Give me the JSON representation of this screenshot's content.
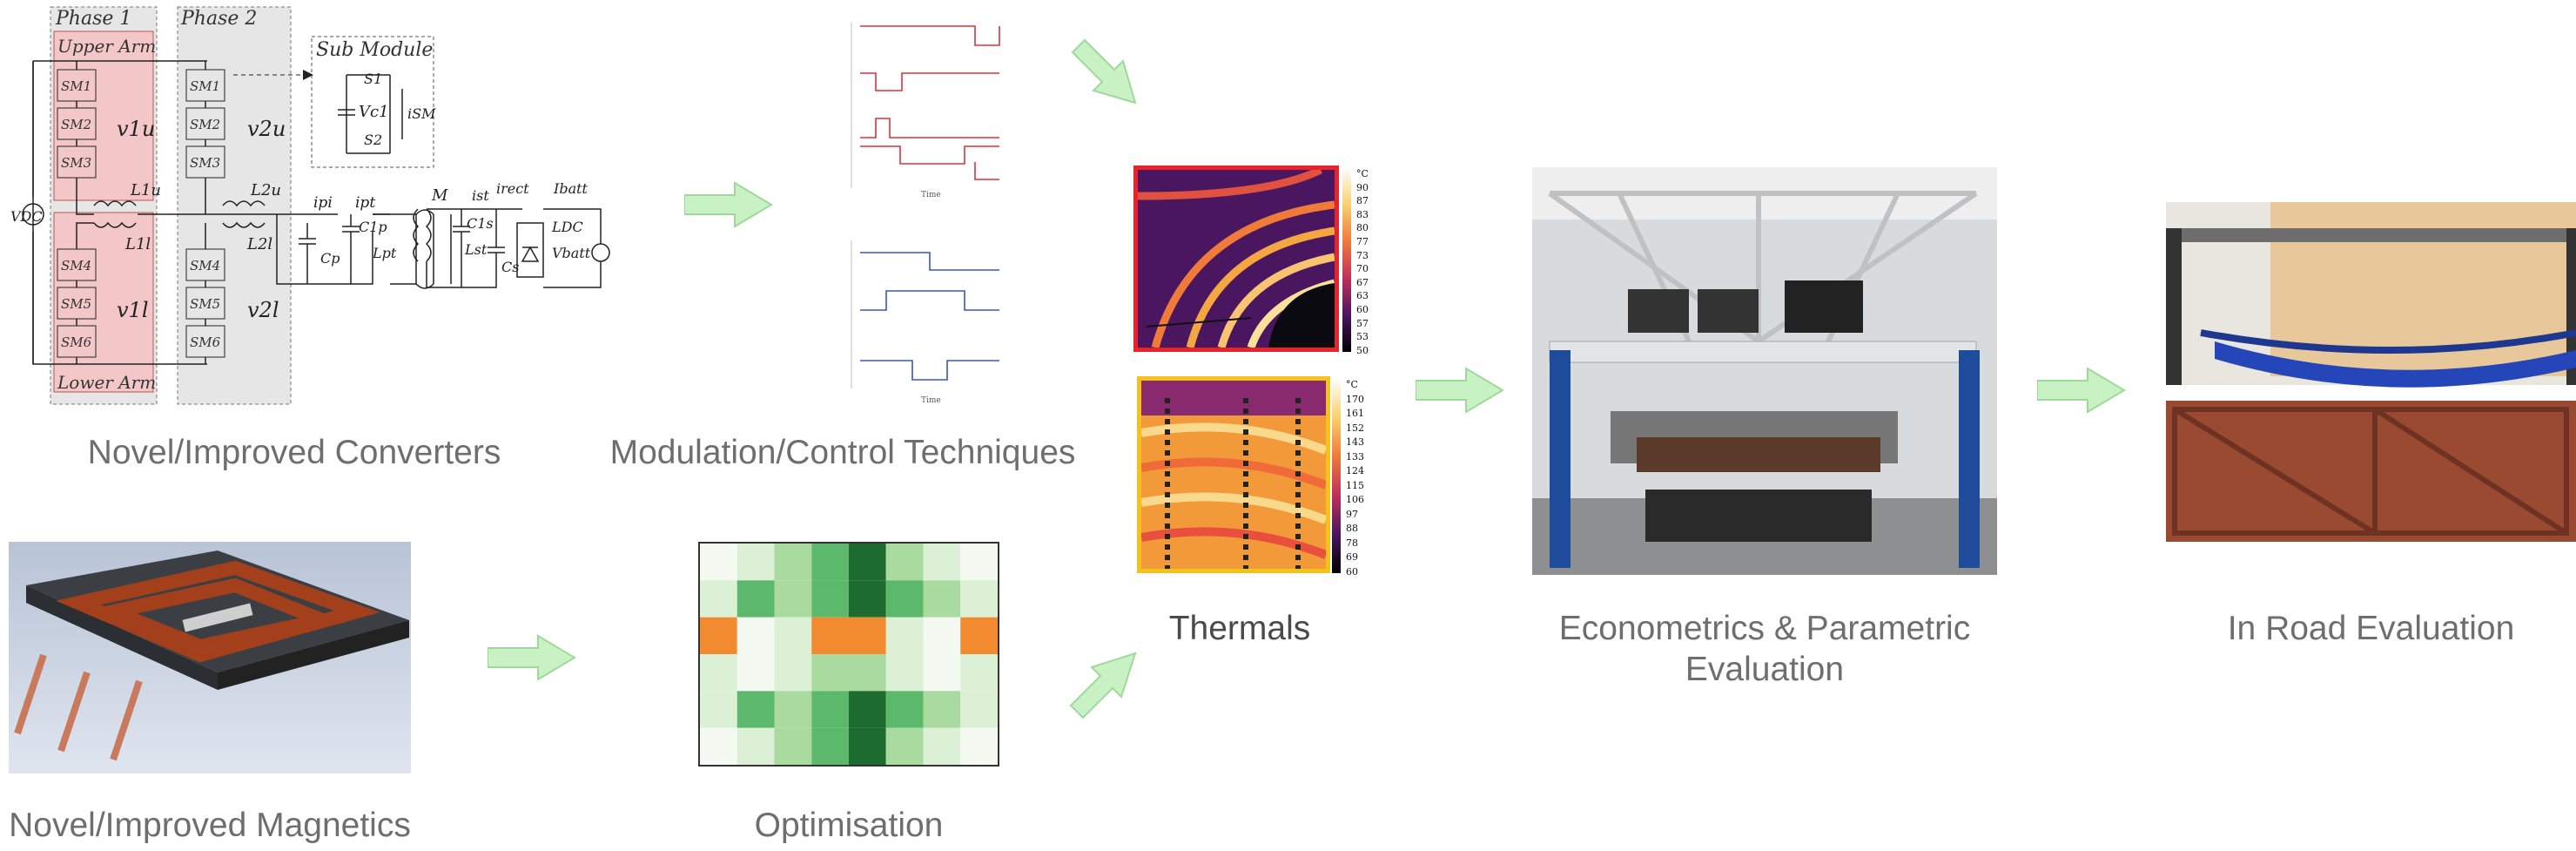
{
  "captions": {
    "converters": "Novel/Improved Converters",
    "modulation": "Modulation/Control Techniques",
    "thermals": "Thermals",
    "econometrics_1": "Econometrics & Parametric",
    "econometrics_2": "Evaluation",
    "in_road": "In Road Evaluation",
    "magnetics": "Novel/Improved Magnetics",
    "optimisation": "Optimisation"
  },
  "converter_diagram": {
    "phase1": "Phase 1",
    "phase2": "Phase 2",
    "upper_arm": "Upper Arm",
    "lower_arm": "Lower Arm",
    "sub_module": "Sub Module",
    "upper_modules": [
      "SM1",
      "SM2",
      "SM3"
    ],
    "lower_modules": [
      "SM4",
      "SM5",
      "SM6"
    ],
    "v1u": "v1u",
    "v1l": "v1l",
    "v2u": "v2u",
    "v2l": "v2l",
    "l1u": "L1u",
    "l1l": "L1l",
    "l2u": "L2u",
    "l2l": "L2l",
    "vdc": "VDC",
    "vc1": "Vc1",
    "s1": "S1",
    "s2": "S2",
    "ism": "iSM",
    "ipi": "ipi",
    "ipt": "ipt",
    "c1p": "C1p",
    "lpt": "Lpt",
    "cp": "Cp",
    "m": "M",
    "c1s": "C1s",
    "lst": "Lst",
    "cs": "Cs",
    "ist": "ist",
    "irect": "irect",
    "ibatt": "Ibatt",
    "ldc": "LDC",
    "vbatt": "Vbatt"
  },
  "thermal_scale_1": [
    "°C",
    "90",
    "87",
    "83",
    "80",
    "77",
    "73",
    "70",
    "67",
    "63",
    "60",
    "57",
    "53",
    "50"
  ],
  "thermal_scale_2": [
    "°C",
    "170",
    "161",
    "152",
    "143",
    "133",
    "124",
    "115",
    "106",
    "97",
    "88",
    "78",
    "69",
    "60"
  ],
  "colors": {
    "arrow_fill": "#c8f2c4",
    "arrow_stroke": "#9fd89a",
    "arm_fill": "#f3c6c8",
    "phase_fill": "#e6e6e6",
    "thermal1_border": "#e8232b",
    "thermal2_border": "#f5c21b",
    "opt_orange": "#f28a30",
    "opt_dark_green": "#1e6b30"
  },
  "icons": [
    "arrow-right-icon",
    "arrow-down-right-icon",
    "arrow-up-right-icon"
  ]
}
